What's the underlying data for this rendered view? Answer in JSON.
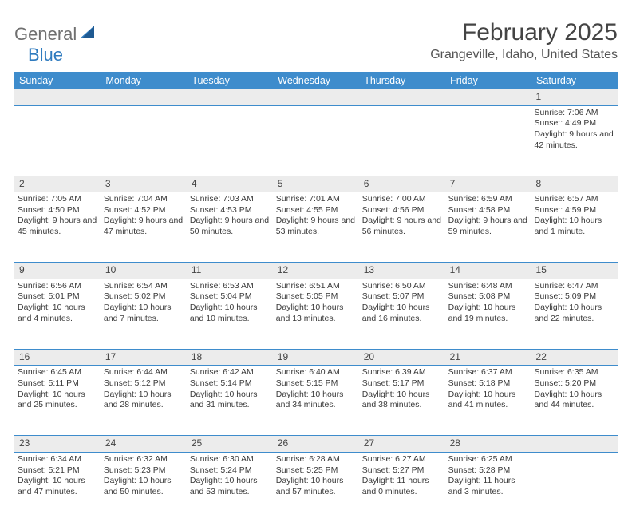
{
  "logo": {
    "part1": "General",
    "part2": "Blue"
  },
  "title": "February 2025",
  "subtitle": "Grangeville, Idaho, United States",
  "header_bg": "#3e8ccc",
  "daynum_bg": "#ececec",
  "border_color": "#3e8ccc",
  "text_color": "#3a3a3a",
  "columns": [
    "Sunday",
    "Monday",
    "Tuesday",
    "Wednesday",
    "Thursday",
    "Friday",
    "Saturday"
  ],
  "weeks": [
    {
      "nums": [
        "",
        "",
        "",
        "",
        "",
        "",
        "1"
      ],
      "cells": [
        null,
        null,
        null,
        null,
        null,
        null,
        {
          "sunrise": "7:06 AM",
          "sunset": "4:49 PM",
          "daylight": "9 hours and 42 minutes."
        }
      ]
    },
    {
      "nums": [
        "2",
        "3",
        "4",
        "5",
        "6",
        "7",
        "8"
      ],
      "cells": [
        {
          "sunrise": "7:05 AM",
          "sunset": "4:50 PM",
          "daylight": "9 hours and 45 minutes."
        },
        {
          "sunrise": "7:04 AM",
          "sunset": "4:52 PM",
          "daylight": "9 hours and 47 minutes."
        },
        {
          "sunrise": "7:03 AM",
          "sunset": "4:53 PM",
          "daylight": "9 hours and 50 minutes."
        },
        {
          "sunrise": "7:01 AM",
          "sunset": "4:55 PM",
          "daylight": "9 hours and 53 minutes."
        },
        {
          "sunrise": "7:00 AM",
          "sunset": "4:56 PM",
          "daylight": "9 hours and 56 minutes."
        },
        {
          "sunrise": "6:59 AM",
          "sunset": "4:58 PM",
          "daylight": "9 hours and 59 minutes."
        },
        {
          "sunrise": "6:57 AM",
          "sunset": "4:59 PM",
          "daylight": "10 hours and 1 minute."
        }
      ]
    },
    {
      "nums": [
        "9",
        "10",
        "11",
        "12",
        "13",
        "14",
        "15"
      ],
      "cells": [
        {
          "sunrise": "6:56 AM",
          "sunset": "5:01 PM",
          "daylight": "10 hours and 4 minutes."
        },
        {
          "sunrise": "6:54 AM",
          "sunset": "5:02 PM",
          "daylight": "10 hours and 7 minutes."
        },
        {
          "sunrise": "6:53 AM",
          "sunset": "5:04 PM",
          "daylight": "10 hours and 10 minutes."
        },
        {
          "sunrise": "6:51 AM",
          "sunset": "5:05 PM",
          "daylight": "10 hours and 13 minutes."
        },
        {
          "sunrise": "6:50 AM",
          "sunset": "5:07 PM",
          "daylight": "10 hours and 16 minutes."
        },
        {
          "sunrise": "6:48 AM",
          "sunset": "5:08 PM",
          "daylight": "10 hours and 19 minutes."
        },
        {
          "sunrise": "6:47 AM",
          "sunset": "5:09 PM",
          "daylight": "10 hours and 22 minutes."
        }
      ]
    },
    {
      "nums": [
        "16",
        "17",
        "18",
        "19",
        "20",
        "21",
        "22"
      ],
      "cells": [
        {
          "sunrise": "6:45 AM",
          "sunset": "5:11 PM",
          "daylight": "10 hours and 25 minutes."
        },
        {
          "sunrise": "6:44 AM",
          "sunset": "5:12 PM",
          "daylight": "10 hours and 28 minutes."
        },
        {
          "sunrise": "6:42 AM",
          "sunset": "5:14 PM",
          "daylight": "10 hours and 31 minutes."
        },
        {
          "sunrise": "6:40 AM",
          "sunset": "5:15 PM",
          "daylight": "10 hours and 34 minutes."
        },
        {
          "sunrise": "6:39 AM",
          "sunset": "5:17 PM",
          "daylight": "10 hours and 38 minutes."
        },
        {
          "sunrise": "6:37 AM",
          "sunset": "5:18 PM",
          "daylight": "10 hours and 41 minutes."
        },
        {
          "sunrise": "6:35 AM",
          "sunset": "5:20 PM",
          "daylight": "10 hours and 44 minutes."
        }
      ]
    },
    {
      "nums": [
        "23",
        "24",
        "25",
        "26",
        "27",
        "28",
        ""
      ],
      "cells": [
        {
          "sunrise": "6:34 AM",
          "sunset": "5:21 PM",
          "daylight": "10 hours and 47 minutes."
        },
        {
          "sunrise": "6:32 AM",
          "sunset": "5:23 PM",
          "daylight": "10 hours and 50 minutes."
        },
        {
          "sunrise": "6:30 AM",
          "sunset": "5:24 PM",
          "daylight": "10 hours and 53 minutes."
        },
        {
          "sunrise": "6:28 AM",
          "sunset": "5:25 PM",
          "daylight": "10 hours and 57 minutes."
        },
        {
          "sunrise": "6:27 AM",
          "sunset": "5:27 PM",
          "daylight": "11 hours and 0 minutes."
        },
        {
          "sunrise": "6:25 AM",
          "sunset": "5:28 PM",
          "daylight": "11 hours and 3 minutes."
        },
        null
      ]
    }
  ],
  "labels": {
    "sunrise": "Sunrise: ",
    "sunset": "Sunset: ",
    "daylight": "Daylight: "
  }
}
